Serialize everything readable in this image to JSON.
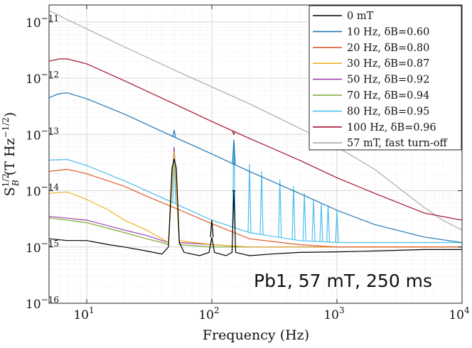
{
  "chart_data": {
    "type": "line",
    "title": "",
    "xlabel": "Frequency (Hz)",
    "ylabel": "S_B^1/2 (T Hz^-1/2)",
    "x_scale": "log",
    "y_scale": "log",
    "xlim": [
      5,
      10000
    ],
    "ylim": [
      1e-16,
      2e-11
    ],
    "grid": true,
    "legend_position": "top-right",
    "annotation": "Pb1, 57 mT, 250 ms",
    "x_ticks": [
      {
        "value": 10,
        "label": "10",
        "exp": "1"
      },
      {
        "value": 100,
        "label": "10",
        "exp": "2"
      },
      {
        "value": 1000,
        "label": "10",
        "exp": "3"
      },
      {
        "value": 10000,
        "label": "10",
        "exp": "4"
      }
    ],
    "y_ticks": [
      {
        "value": 1e-16,
        "label": "10",
        "exp": "−16"
      },
      {
        "value": 1e-15,
        "label": "10",
        "exp": "−15"
      },
      {
        "value": 1e-14,
        "label": "10",
        "exp": "−14"
      },
      {
        "value": 1e-13,
        "label": "10",
        "exp": "−13"
      },
      {
        "value": 1e-12,
        "label": "10",
        "exp": "−12"
      },
      {
        "value": 1e-11,
        "label": "10",
        "exp": "−11"
      }
    ],
    "series": [
      {
        "name": "0 mT",
        "color": "#000000",
        "x": [
          5,
          7,
          10,
          15,
          20,
          30,
          40,
          45,
          48,
          50,
          52,
          55,
          60,
          80,
          95,
          100,
          105,
          130,
          145,
          150,
          155,
          200,
          300,
          500,
          1000,
          2000,
          5000,
          10000
        ],
        "y": [
          1.4e-15,
          1.3e-15,
          1.3e-15,
          1.1e-15,
          1e-15,
          8.5e-16,
          7.5e-16,
          1e-15,
          2.5e-14,
          3.7e-14,
          2.5e-14,
          1.2e-15,
          8e-16,
          7e-16,
          8e-16,
          1.5e-15,
          8e-16,
          7e-16,
          8e-16,
          1e-14,
          8e-16,
          7e-16,
          7.5e-16,
          8e-16,
          8.2e-16,
          8.5e-16,
          9e-16,
          9e-16
        ]
      },
      {
        "name": "10 Hz, δB=0.60",
        "color": "#1f77b4",
        "x": [
          5,
          6,
          7,
          10,
          20,
          50,
          100,
          200,
          500,
          1000,
          2000,
          5000,
          10000
        ],
        "y": [
          4.5e-13,
          5.3e-13,
          5.5e-13,
          4.3e-13,
          2.3e-13,
          9e-14,
          4.5e-14,
          2.2e-14,
          9e-15,
          4.5e-15,
          2.5e-15,
          1.5e-15,
          1.2e-15
        ]
      },
      {
        "name": "20 Hz, δB=0.80",
        "color": "#e05a2b",
        "x": [
          5,
          7,
          10,
          20,
          30,
          50,
          100,
          200,
          500,
          1000,
          2000,
          5000,
          10000
        ],
        "y": [
          2.2e-14,
          2.4e-14,
          2e-14,
          1.2e-14,
          8e-15,
          5e-15,
          2.6e-15,
          1.4e-15,
          1.1e-15,
          1e-15,
          1e-15,
          1e-15,
          1e-15
        ]
      },
      {
        "name": "30 Hz, δB=0.87",
        "color": "#edb120",
        "x": [
          5,
          7,
          10,
          15,
          20,
          30,
          40,
          45,
          50,
          55,
          100,
          200,
          500,
          1000,
          5000,
          10000
        ],
        "y": [
          9e-15,
          9.5e-15,
          7e-15,
          4.5e-15,
          3e-15,
          2e-15,
          1.4e-15,
          1.2e-15,
          5e-14,
          1.3e-15,
          1.1e-15,
          1e-15,
          1e-15,
          1e-15,
          1e-15,
          1e-15
        ]
      },
      {
        "name": "50 Hz, δB=0.92",
        "color": "#a040b0",
        "x": [
          5,
          10,
          20,
          30,
          40,
          45,
          50,
          55,
          100,
          200,
          500,
          1000,
          5000,
          10000
        ],
        "y": [
          3.5e-15,
          3e-15,
          2e-15,
          1.6e-15,
          1.3e-15,
          1.2e-15,
          6e-14,
          1.2e-15,
          1.1e-15,
          1e-15,
          1e-15,
          1e-15,
          1e-15,
          1e-15
        ]
      },
      {
        "name": "70 Hz, δB=0.94",
        "color": "#77ac30",
        "x": [
          5,
          10,
          20,
          30,
          40,
          45,
          50,
          55,
          100,
          200,
          500,
          1000,
          5000,
          10000
        ],
        "y": [
          3.3e-15,
          2.7e-15,
          1.8e-15,
          1.4e-15,
          1.2e-15,
          1.1e-15,
          5.5e-14,
          1.1e-15,
          1e-15,
          1e-15,
          1e-15,
          1e-15,
          1e-15,
          1e-15
        ]
      },
      {
        "name": "80 Hz, δB=0.95",
        "color": "#4dbeee",
        "x": [
          5,
          7,
          10,
          20,
          50,
          100,
          200,
          500,
          1000,
          2000,
          5000,
          10000
        ],
        "y": [
          3.5e-14,
          3.6e-14,
          2.8e-14,
          1.5e-14,
          6e-15,
          3e-15,
          1.8e-15,
          1.3e-15,
          1.2e-15,
          1.2e-15,
          1.2e-15,
          1.2e-15
        ]
      },
      {
        "name": "100 Hz, δB=0.96",
        "color": "#a2142f",
        "x": [
          5,
          6,
          7,
          10,
          20,
          50,
          100,
          200,
          500,
          1000,
          2000,
          5000,
          10000
        ],
        "y": [
          2e-12,
          2.2e-12,
          2.2e-12,
          1.8e-12,
          9e-13,
          3.5e-13,
          1.7e-13,
          8.5e-14,
          3.5e-14,
          1.7e-14,
          9e-15,
          4e-15,
          3e-15
        ]
      },
      {
        "name": "57 mT, fast turn-off",
        "color": "#aaaaaa",
        "x": [
          5,
          7,
          10,
          20,
          50,
          100,
          200,
          500,
          1000,
          2000,
          3000,
          5000,
          7000,
          10000
        ],
        "y": [
          1.6e-11,
          1.1e-11,
          7.5e-12,
          3.6e-12,
          1.4e-12,
          7e-13,
          3.5e-13,
          1.3e-13,
          6e-14,
          2.4e-14,
          1.2e-14,
          5e-15,
          3e-15,
          2e-15
        ]
      }
    ],
    "peaks": [
      {
        "series": "0 mT",
        "peaks": [
          [
            100,
            3e-15
          ],
          [
            150,
            1e-14
          ]
        ]
      },
      {
        "series": "10 Hz, δB=0.60",
        "peaks": [
          [
            50,
            1.2e-13
          ],
          [
            150,
            8e-14
          ]
        ]
      },
      {
        "series": "80 Hz, δB=0.95",
        "peaks": [
          [
            50,
            6e-14
          ],
          [
            150,
            8e-14
          ],
          [
            200,
            3e-14
          ],
          [
            250,
            2.2e-14
          ],
          [
            350,
            1.6e-14
          ],
          [
            450,
            1.2e-14
          ],
          [
            550,
            9e-15
          ],
          [
            650,
            7e-15
          ],
          [
            750,
            6e-15
          ],
          [
            850,
            5.5e-15
          ],
          [
            1000,
            4.5e-15
          ]
        ]
      },
      {
        "series": "100 Hz, δB=0.96",
        "peaks": [
          [
            150,
            1e-13
          ]
        ]
      }
    ]
  }
}
